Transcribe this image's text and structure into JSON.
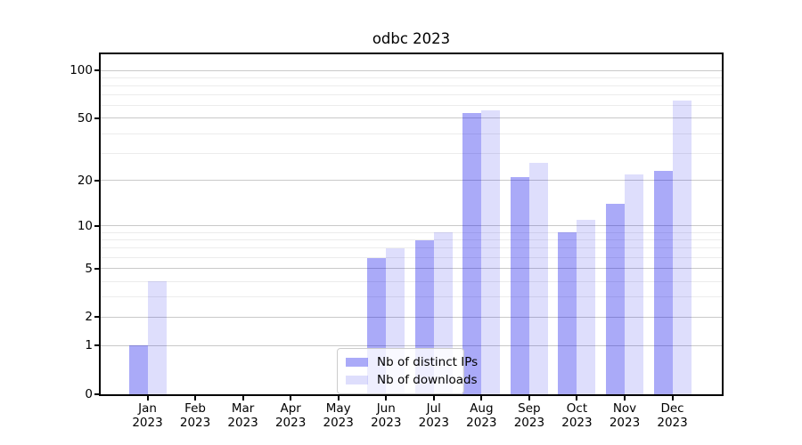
{
  "chart_data": {
    "type": "bar",
    "title": "odbc 2023",
    "year_label": "2023",
    "months": [
      "Jan",
      "Feb",
      "Mar",
      "Apr",
      "May",
      "Jun",
      "Jul",
      "Aug",
      "Sep",
      "Oct",
      "Nov",
      "Dec"
    ],
    "series": [
      {
        "name": "Nb of distinct IPs",
        "color": "rgba(10,8,235,0.345)",
        "color_hex_approx": "#aaaaf8",
        "values": [
          1,
          0,
          0,
          0,
          0,
          6,
          8,
          54,
          21,
          9,
          14,
          23
        ]
      },
      {
        "name": "Nb of downloads",
        "color": "rgba(10,8,235,0.135)",
        "color_hex_approx": "#dedefc",
        "values": [
          4,
          0,
          0,
          0,
          0,
          7,
          9,
          56,
          26,
          11,
          22,
          65
        ]
      }
    ],
    "yscale": "log1p",
    "ylim": [
      0,
      126
    ],
    "yticks": [
      100,
      50,
      20,
      10,
      5,
      2,
      1,
      0
    ],
    "major_gridlines": [
      1,
      2,
      5,
      10,
      20,
      50,
      100
    ],
    "minor_gridlines": [
      3,
      4,
      6,
      7,
      8,
      9,
      30,
      40,
      60,
      70,
      80,
      90
    ],
    "grid": true,
    "legend_position": "lower center"
  }
}
